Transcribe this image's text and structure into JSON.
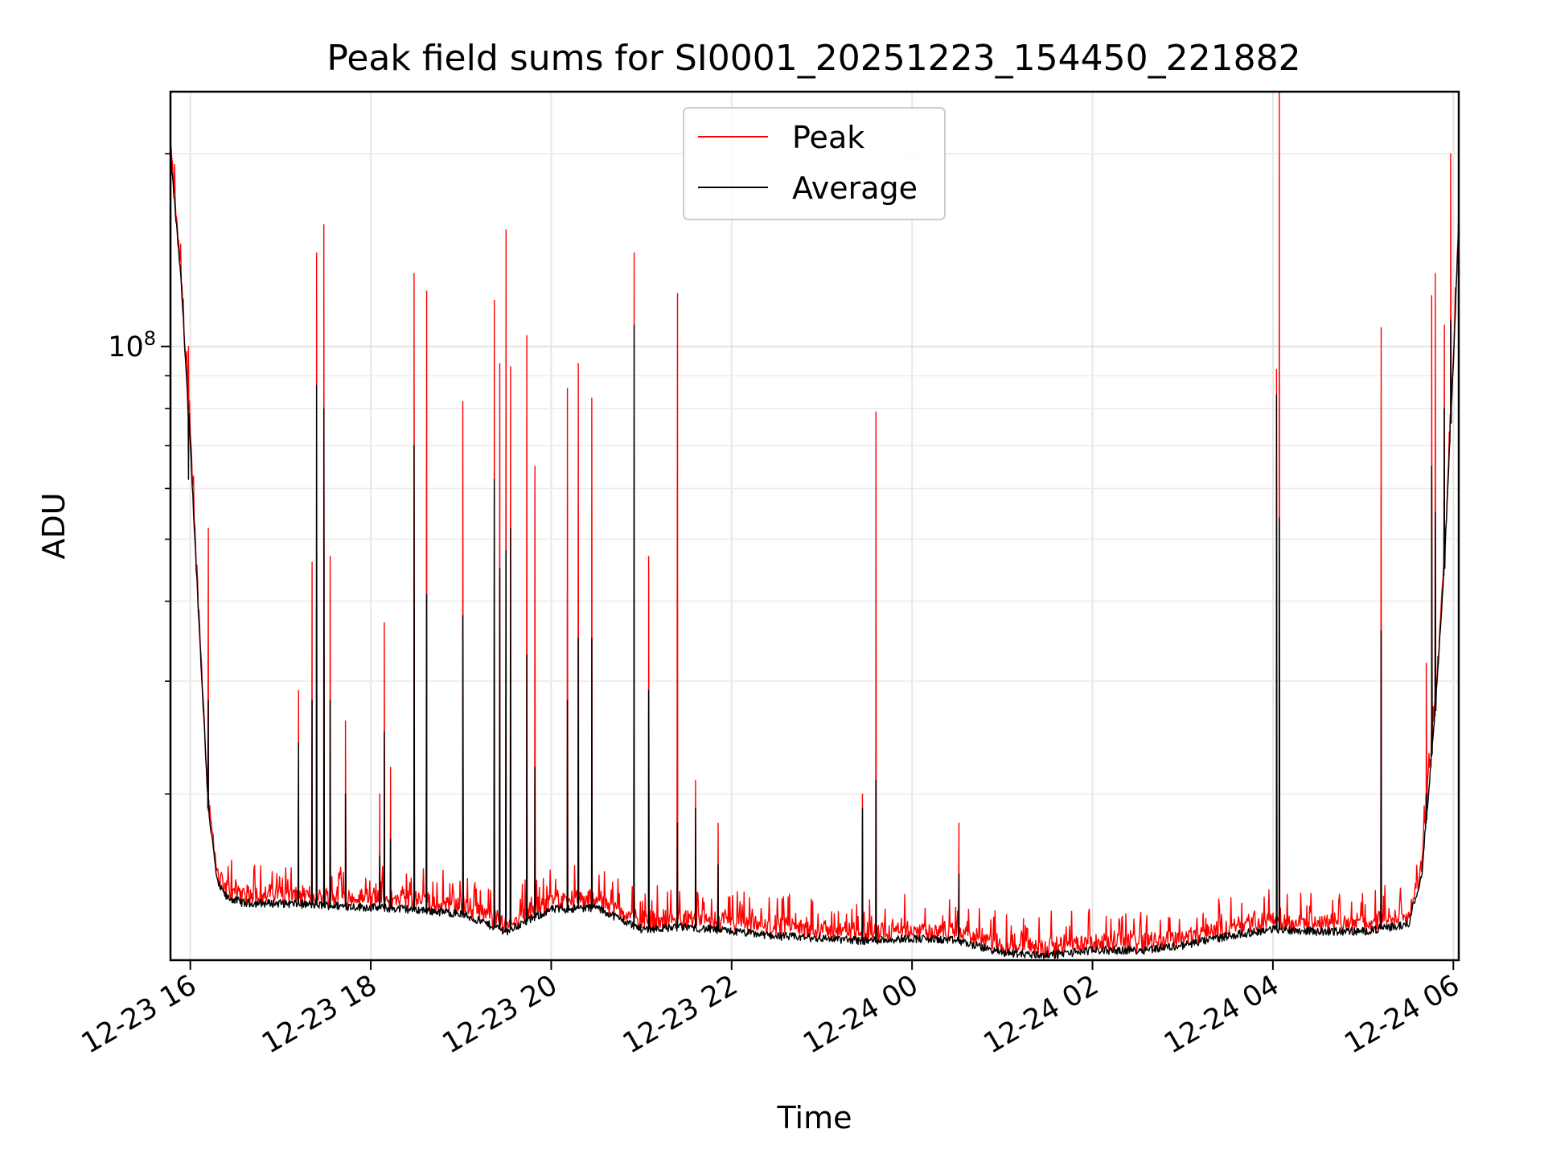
{
  "chart_data": {
    "type": "line",
    "title": "Peak field sums for SI0001_20251223_154450_221882",
    "xlabel": "Time",
    "ylabel": "ADU",
    "yscale": "log",
    "xlim_hours": [
      15.78,
      30.06
    ],
    "ylim": [
      11000000,
      250000000
    ],
    "grid": true,
    "legend": {
      "location": "upper center",
      "entries": [
        {
          "name": "Peak",
          "color": "#ff0000"
        },
        {
          "name": "Average",
          "color": "#000000"
        }
      ]
    },
    "x_ticks": [
      {
        "hours": 16,
        "label": "12-23 16"
      },
      {
        "hours": 18,
        "label": "12-23 18"
      },
      {
        "hours": 20,
        "label": "12-23 20"
      },
      {
        "hours": 22,
        "label": "12-23 22"
      },
      {
        "hours": 24,
        "label": "12-24 00"
      },
      {
        "hours": 26,
        "label": "12-24 02"
      },
      {
        "hours": 28,
        "label": "12-24 04"
      },
      {
        "hours": 30,
        "label": "12-24 06"
      }
    ],
    "y_ticks": [
      {
        "value": 100000000,
        "base": "10",
        "exp": "8"
      }
    ],
    "baseline_average": {
      "hours": [
        15.78,
        15.9,
        16.0,
        16.1,
        16.2,
        16.3,
        16.4,
        16.6,
        17.0,
        17.5,
        18.0,
        18.5,
        19.0,
        19.5,
        20.0,
        20.5,
        21.0,
        21.5,
        22.0,
        22.5,
        23.0,
        23.5,
        24.0,
        24.5,
        25.0,
        25.5,
        26.0,
        26.5,
        27.0,
        27.5,
        28.0,
        28.5,
        29.0,
        29.3,
        29.5,
        29.65,
        29.8,
        29.9,
        30.0,
        30.06
      ],
      "values": [
        200000000,
        125000000,
        70000000,
        36000000,
        19000000,
        14500000,
        13800000,
        13500000,
        13500000,
        13400000,
        13300000,
        13200000,
        13000000,
        12200000,
        13200000,
        13300000,
        12300000,
        12400000,
        12200000,
        12000000,
        11900000,
        11800000,
        11900000,
        11800000,
        11300000,
        11200000,
        11400000,
        11400000,
        11600000,
        12000000,
        12300000,
        12200000,
        12200000,
        12400000,
        12500000,
        15000000,
        27000000,
        45000000,
        95000000,
        155000000
      ]
    },
    "peak_spikes": [
      {
        "hours": 15.98,
        "peak": 100000000,
        "avg": 62000000
      },
      {
        "hours": 16.2,
        "peak": 52000000,
        "avg": 28000000
      },
      {
        "hours": 17.2,
        "peak": 29000000,
        "avg": 24000000
      },
      {
        "hours": 17.35,
        "peak": 46000000,
        "avg": 28000000
      },
      {
        "hours": 17.4,
        "peak": 140000000,
        "avg": 87000000
      },
      {
        "hours": 17.48,
        "peak": 155000000,
        "avg": 80000000
      },
      {
        "hours": 17.55,
        "peak": 47000000,
        "avg": 28000000
      },
      {
        "hours": 17.72,
        "peak": 26000000,
        "avg": 20000000
      },
      {
        "hours": 18.1,
        "peak": 20000000,
        "avg": 16000000
      },
      {
        "hours": 18.15,
        "peak": 37000000,
        "avg": 25000000
      },
      {
        "hours": 18.22,
        "peak": 22000000,
        "avg": 17000000
      },
      {
        "hours": 18.48,
        "peak": 130000000,
        "avg": 70000000
      },
      {
        "hours": 18.62,
        "peak": 122000000,
        "avg": 41000000
      },
      {
        "hours": 19.02,
        "peak": 82000000,
        "avg": 38000000
      },
      {
        "hours": 19.37,
        "peak": 118000000,
        "avg": 62000000
      },
      {
        "hours": 19.43,
        "peak": 94000000,
        "avg": 45000000
      },
      {
        "hours": 19.5,
        "peak": 152000000,
        "avg": 48000000
      },
      {
        "hours": 19.55,
        "peak": 93000000,
        "avg": 52000000
      },
      {
        "hours": 19.73,
        "peak": 104000000,
        "avg": 33000000
      },
      {
        "hours": 19.82,
        "peak": 65000000,
        "avg": 22000000
      },
      {
        "hours": 20.18,
        "peak": 86000000,
        "avg": 28000000
      },
      {
        "hours": 20.3,
        "peak": 94000000,
        "avg": 35000000
      },
      {
        "hours": 20.45,
        "peak": 83000000,
        "avg": 35000000
      },
      {
        "hours": 20.92,
        "peak": 140000000,
        "avg": 108000000
      },
      {
        "hours": 21.08,
        "peak": 47000000,
        "avg": 29000000
      },
      {
        "hours": 21.4,
        "peak": 121000000,
        "avg": 18000000
      },
      {
        "hours": 21.6,
        "peak": 21000000,
        "avg": 19000000
      },
      {
        "hours": 21.85,
        "peak": 18000000,
        "avg": 15500000
      },
      {
        "hours": 23.45,
        "peak": 20000000,
        "avg": 19000000
      },
      {
        "hours": 23.6,
        "peak": 79000000,
        "avg": 21000000
      },
      {
        "hours": 24.52,
        "peak": 18000000,
        "avg": 15000000
      },
      {
        "hours": 28.04,
        "peak": 92000000,
        "avg": 84000000
      },
      {
        "hours": 28.07,
        "peak": 250000000,
        "avg": 54000000
      },
      {
        "hours": 29.2,
        "peak": 107000000,
        "avg": 36000000
      },
      {
        "hours": 29.7,
        "peak": 32000000,
        "avg": 20000000
      },
      {
        "hours": 29.76,
        "peak": 120000000,
        "avg": 65000000
      },
      {
        "hours": 29.8,
        "peak": 130000000,
        "avg": 55000000
      },
      {
        "hours": 29.9,
        "peak": 108000000,
        "avg": 80000000
      },
      {
        "hours": 29.97,
        "peak": 200000000,
        "avg": 110000000
      }
    ]
  }
}
